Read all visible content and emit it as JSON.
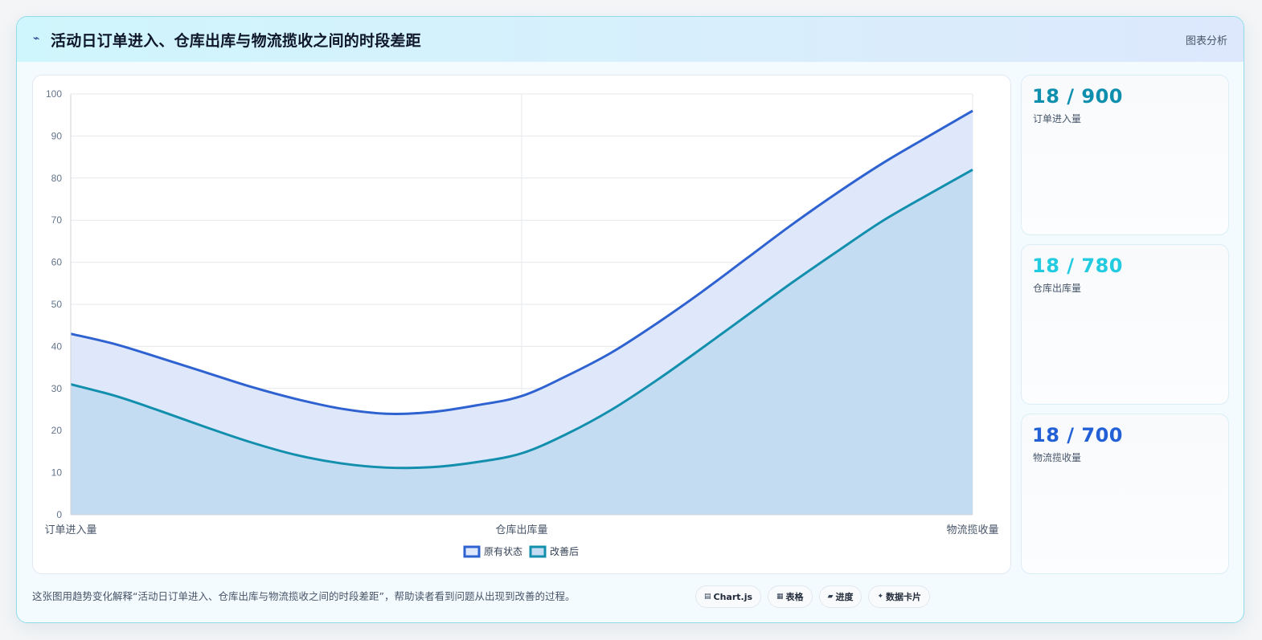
{
  "header": {
    "title": "活动日订单进入、仓库出库与物流揽收之间的时段差距",
    "icon": "lightning-icon",
    "right_label": "图表分析"
  },
  "chart_data": {
    "type": "area",
    "categories": [
      "订单进入量",
      "仓库出库量",
      "物流揽收量"
    ],
    "x_positions": [
      0,
      1,
      2
    ],
    "ylim": [
      0,
      100
    ],
    "yticks": [
      0,
      10,
      20,
      30,
      40,
      50,
      60,
      70,
      80,
      90,
      100
    ],
    "grid": true,
    "legend_position": "bottom",
    "series": [
      {
        "name": "原有状态",
        "color": "#2f62d1",
        "fill": "#dfe8fb",
        "x": [
          0,
          0.1,
          0.2,
          0.3,
          0.4,
          0.5,
          0.6,
          0.7,
          0.8,
          0.9,
          1.0,
          1.1,
          1.2,
          1.3,
          1.4,
          1.5,
          1.6,
          1.7,
          1.8,
          1.9,
          2.0
        ],
        "y": [
          43,
          40.5,
          37.2,
          33.8,
          30.4,
          27.5,
          25.2,
          24,
          24.4,
          26,
          28.2,
          33,
          38.6,
          45.5,
          53,
          61,
          69,
          76.5,
          83.5,
          89.8,
          96
        ]
      },
      {
        "name": "改善后",
        "color": "#138fae",
        "fill": "#c4dcf2",
        "x": [
          0,
          0.1,
          0.2,
          0.3,
          0.4,
          0.5,
          0.6,
          0.7,
          0.8,
          0.9,
          1.0,
          1.1,
          1.2,
          1.3,
          1.4,
          1.5,
          1.6,
          1.7,
          1.8,
          1.9,
          2.0
        ],
        "y": [
          31,
          28.2,
          24.6,
          20.8,
          17.2,
          14.2,
          12.2,
          11.2,
          11.3,
          12.5,
          14.6,
          19.2,
          25,
          32,
          39.6,
          47.4,
          55.2,
          62.6,
          69.8,
          76,
          82
        ]
      }
    ]
  },
  "stats": [
    {
      "value": "18 / 900",
      "label": "订单进入量",
      "color": "#0e8fae"
    },
    {
      "value": "18 / 780",
      "label": "仓库出库量",
      "color": "#22cbe0"
    },
    {
      "value": "18 / 700",
      "label": "物流揽收量",
      "color": "#2360d6"
    }
  ],
  "footer": {
    "caption": "这张图用趋势变化解释“活动日订单进入、仓库出库与物流揽收之间的时段差距”，帮助读者看到问题从出现到改善的过程。",
    "chips": [
      {
        "icon": "chart-icon",
        "label": "Chart.js"
      },
      {
        "icon": "table-icon",
        "label": "表格"
      },
      {
        "icon": "progress-icon",
        "label": "进度"
      },
      {
        "icon": "sparkle-icon",
        "label": "数据卡片"
      }
    ]
  }
}
